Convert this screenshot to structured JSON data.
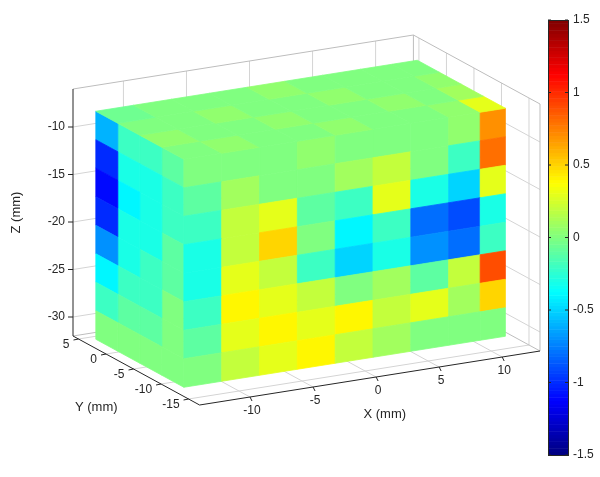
{
  "chart_data": {
    "type": "surface",
    "xlabel": "X (mm)",
    "ylabel": "Y (mm)",
    "zlabel": "Z (mm)",
    "xlim": [
      -14,
      13
    ],
    "ylim": [
      -17,
      6
    ],
    "zlim": [
      -32,
      -6
    ],
    "xticks": [
      -10,
      -5,
      0,
      5,
      10
    ],
    "yticks": [
      -15,
      -10,
      -5,
      0,
      5
    ],
    "zticks": [
      -30,
      -25,
      -20,
      -15,
      -10
    ],
    "grid": true,
    "colorbar": {
      "range": [
        -1.5,
        1.5
      ],
      "ticks": [
        -1.5,
        -1,
        -0.5,
        0,
        0.5,
        1,
        1.5
      ]
    },
    "faces": [
      {
        "x": [
          -13.5
        ],
        "y": [
          -11,
          -7,
          -3,
          1
        ],
        "z": [
          -9,
          -12,
          -15,
          -18,
          -21,
          -24,
          -27,
          -30
        ],
        "deviation": [
          [
            -0.1,
            -0.2,
            -0.2,
            -0.6
          ],
          [
            -0.2,
            -0.3,
            -0.3,
            -1.0
          ],
          [
            -0.2,
            -0.3,
            -0.4,
            -1.1
          ],
          [
            -0.1,
            -0.3,
            -0.3,
            -1.0
          ],
          [
            -0.1,
            -0.2,
            -0.3,
            -0.7
          ],
          [
            0.0,
            -0.2,
            -0.2,
            -0.4
          ],
          [
            0.0,
            -0.1,
            -0.1,
            -0.2
          ],
          [
            0.0,
            0.0,
            0.0,
            0.0
          ]
        ]
      },
      {
        "x": [
          -12,
          -9,
          -6,
          -3,
          0,
          3,
          6,
          9,
          11
        ],
        "y": [
          -13
        ],
        "z": [
          -9,
          -12,
          -15,
          -18,
          -21,
          -24,
          -27,
          -30
        ],
        "deviation": [
          [
            0.0,
            0.0,
            0.0,
            0.05,
            0.0,
            0.0,
            0.0,
            0.05,
            0.7
          ],
          [
            -0.1,
            0.1,
            0.0,
            0.0,
            0.1,
            0.2,
            0.0,
            -0.2,
            0.8
          ],
          [
            -0.2,
            0.2,
            0.3,
            -0.1,
            -0.2,
            0.3,
            -0.3,
            -0.5,
            0.3
          ],
          [
            -0.3,
            0.2,
            0.5,
            0.0,
            -0.4,
            -0.2,
            -0.8,
            -0.9,
            -0.3
          ],
          [
            -0.3,
            0.3,
            0.2,
            -0.2,
            -0.5,
            -0.3,
            -0.7,
            -0.8,
            -0.2
          ],
          [
            -0.2,
            0.4,
            0.3,
            0.2,
            0.0,
            0.1,
            -0.1,
            0.2,
            0.9
          ],
          [
            -0.1,
            0.3,
            0.4,
            0.3,
            0.4,
            0.2,
            0.3,
            0.1,
            0.5
          ],
          [
            0.0,
            0.2,
            0.3,
            0.4,
            0.2,
            0.1,
            0.0,
            0.0,
            0.0
          ]
        ]
      },
      {
        "x": [
          -12,
          -9,
          -6,
          -3,
          0,
          3,
          6,
          9,
          11
        ],
        "y": [
          -11,
          -7,
          -3,
          1
        ],
        "z": [
          -7.5
        ],
        "deviation": [
          [
            0.0,
            0.05,
            0.0,
            0.0,
            0.05,
            0.0,
            0.0,
            0.05,
            0.3
          ],
          [
            0.05,
            0.0,
            0.0,
            0.05,
            0.0,
            0.0,
            0.05,
            0.0,
            0.1
          ],
          [
            0.0,
            0.0,
            0.05,
            0.0,
            0.0,
            0.05,
            0.0,
            0.0,
            0.05
          ],
          [
            -0.05,
            0.0,
            0.0,
            0.0,
            0.05,
            0.0,
            0.0,
            0.0,
            0.0
          ]
        ]
      }
    ]
  }
}
